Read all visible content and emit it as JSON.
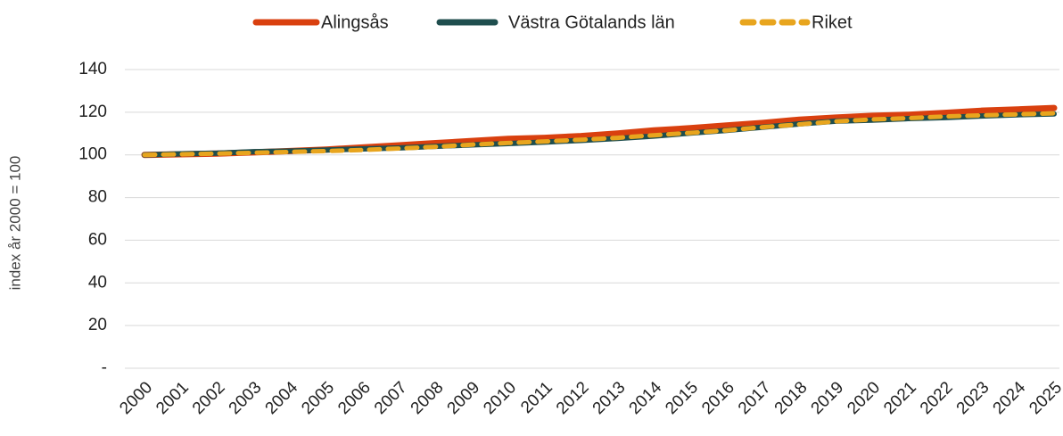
{
  "chart_data": {
    "type": "line",
    "y_label": "index år 2000 = 100",
    "categories": [
      "2000",
      "2001",
      "2002",
      "2003",
      "2004",
      "2005",
      "2006",
      "2007",
      "2008",
      "2009",
      "2010",
      "2011",
      "2012",
      "2013",
      "2014",
      "2015",
      "2016",
      "2017",
      "2018",
      "2019",
      "2020",
      "2021",
      "2022",
      "2023",
      "2024",
      "2025"
    ],
    "series": [
      {
        "name": "Alingsås",
        "color": "#d9400f",
        "values": [
          100,
          100.3,
          100.6,
          101.2,
          101.8,
          102.5,
          103.5,
          104.5,
          105.5,
          106.5,
          107.5,
          108,
          108.8,
          110,
          111.5,
          112.5,
          113.8,
          115,
          116.5,
          117.5,
          118.3,
          118.8,
          119.7,
          120.7,
          121.3,
          122
        ]
      },
      {
        "name": "Västra Götalands län",
        "color": "#1f4e4e",
        "values": [
          100,
          100.5,
          100.8,
          101.5,
          101.8,
          102.3,
          102.8,
          103.3,
          104,
          104.7,
          105.3,
          106,
          106.8,
          107.7,
          108.8,
          110.2,
          111.5,
          113,
          114.5,
          115.8,
          116.3,
          117,
          117.5,
          118.2,
          118.8,
          119.2
        ]
      },
      {
        "name": "Riket",
        "color": "#e8a51e",
        "dashed": true,
        "values": [
          100,
          100.3,
          100.6,
          101,
          101.4,
          101.8,
          102.3,
          103,
          103.8,
          104.8,
          105.6,
          106.3,
          107.1,
          108,
          109.2,
          110.3,
          111.5,
          113,
          114.3,
          115.7,
          116.6,
          117.2,
          118,
          118.5,
          119,
          119.5
        ]
      }
    ],
    "ylim": [
      0,
      140
    ],
    "yticks": [
      {
        "value": 0,
        "label": "-"
      },
      20,
      40,
      60,
      80,
      100,
      120,
      140
    ],
    "grid": true,
    "legend": "top"
  }
}
